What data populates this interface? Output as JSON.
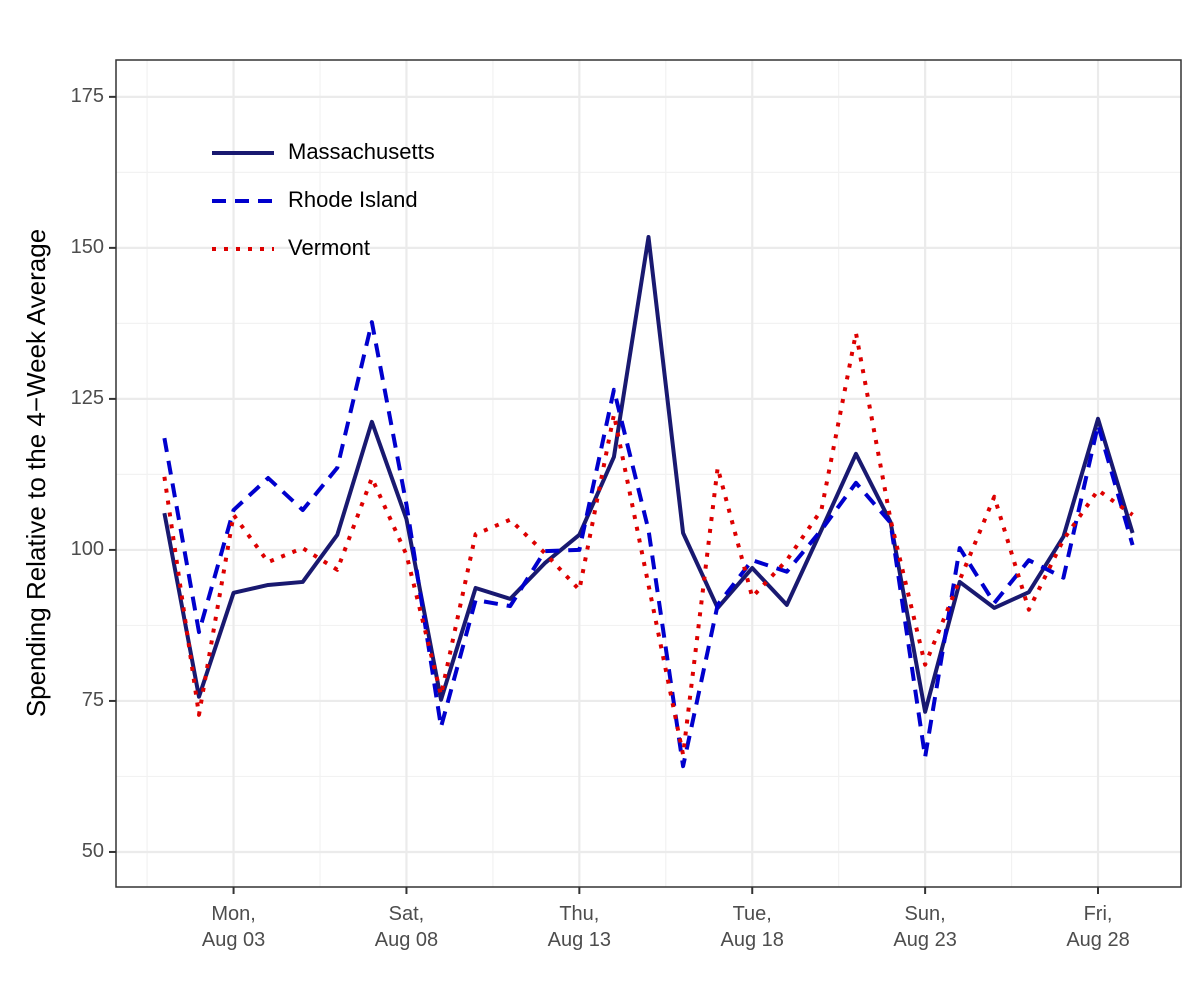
{
  "chart_data": {
    "type": "line",
    "ylabel": "Spending Relative to the 4−Week Average",
    "x": [
      1,
      2,
      3,
      4,
      5,
      6,
      7,
      8,
      9,
      10,
      11,
      12,
      13,
      14,
      15,
      16,
      17,
      18,
      19,
      20,
      21,
      22,
      23,
      24,
      25,
      26,
      27,
      28,
      29
    ],
    "xlim": [
      -0.4,
      30.4
    ],
    "xticks": [
      {
        "value": 3,
        "label": "Mon,\nAug 03"
      },
      {
        "value": 8,
        "label": "Sat,\nAug 08"
      },
      {
        "value": 13,
        "label": "Thu,\nAug 13"
      },
      {
        "value": 18,
        "label": "Tue,\nAug 18"
      },
      {
        "value": 23,
        "label": "Sun,\nAug 23"
      },
      {
        "value": 28,
        "label": "Fri,\nAug 28"
      }
    ],
    "ylim": [
      44.2,
      181.1
    ],
    "yticks": [
      50,
      75,
      100,
      125,
      150,
      175
    ],
    "grid": true,
    "legend": "top-left",
    "series": [
      {
        "name": "Massachusetts",
        "color": "#191970",
        "dash": "solid",
        "values": [
          106.1,
          75.7,
          92.9,
          94.2,
          94.7,
          102.5,
          121.2,
          105.1,
          75.2,
          93.7,
          91.9,
          97.8,
          102.5,
          115.4,
          151.8,
          102.8,
          90.4,
          97.0,
          90.9,
          103.3,
          115.9,
          104.6,
          73.2,
          94.7,
          90.4,
          93.0,
          102.2,
          121.7,
          102.8
        ]
      },
      {
        "name": "Rhode Island",
        "color": "#0000cd",
        "dash": "dashed",
        "values": [
          118.5,
          86.4,
          106.6,
          111.9,
          106.6,
          113.6,
          137.7,
          107.5,
          70.7,
          91.7,
          90.7,
          99.8,
          100.0,
          126.5,
          103.3,
          64.2,
          90.9,
          98.3,
          96.4,
          103.3,
          111.1,
          104.5,
          65.7,
          100.3,
          91.2,
          98.3,
          95.4,
          120.7,
          100.8
        ]
      },
      {
        "name": "Vermont",
        "color": "#dd0000",
        "dash": "dotted",
        "values": [
          112.1,
          72.7,
          105.8,
          98.0,
          100.3,
          96.7,
          111.9,
          99.2,
          76.0,
          102.6,
          105.0,
          99.5,
          93.4,
          122.4,
          94.2,
          66.1,
          113.6,
          92.2,
          98.3,
          106.6,
          135.9,
          105.0,
          81.0,
          95.0,
          108.8,
          90.1,
          101.7,
          109.9,
          105.8
        ]
      }
    ]
  }
}
